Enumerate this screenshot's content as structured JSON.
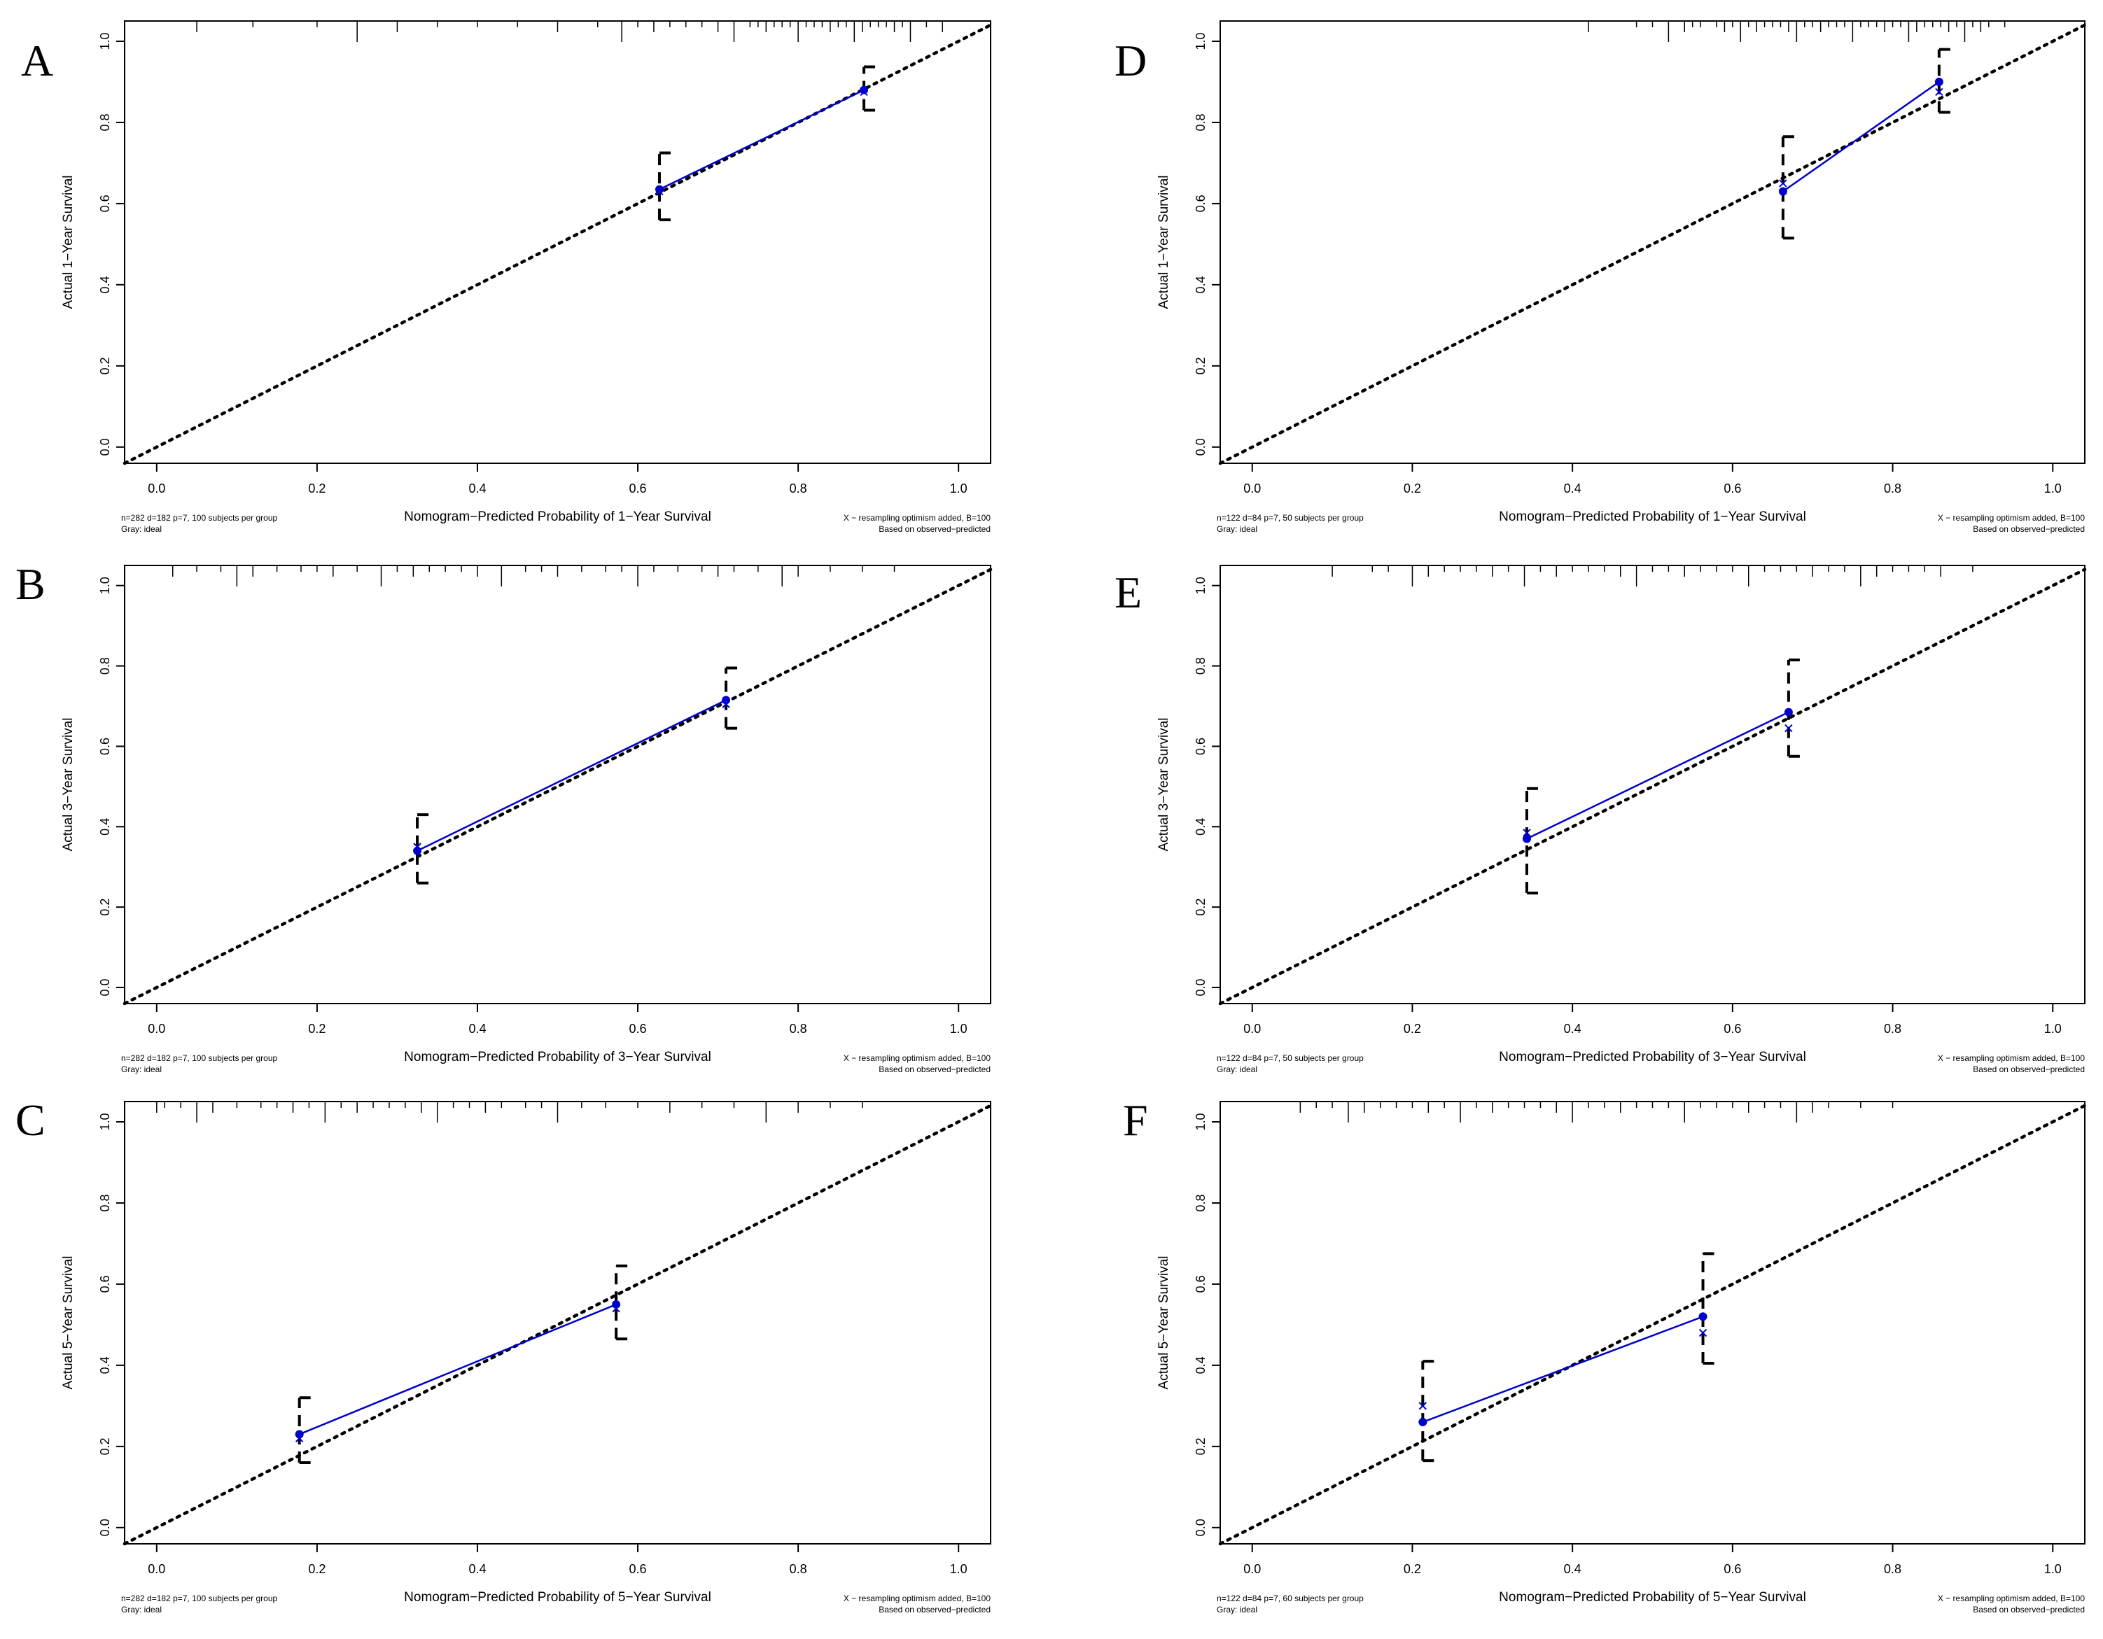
{
  "figure": {
    "background": "#ffffff",
    "fitted_color": "#0000cc",
    "ideal_color": "#000000"
  },
  "chart_data": [
    {
      "letter": "A",
      "type": "line",
      "title": "",
      "xlabel": "Nomogram−Predicted Probability of 1−Year Survival",
      "ylabel": "Actual 1−Year Survival",
      "xlim": [
        -0.04,
        1.04
      ],
      "ylim": [
        -0.04,
        1.05
      ],
      "xticks": [
        "0.0",
        "0.2",
        "0.4",
        "0.6",
        "0.8",
        "1.0"
      ],
      "yticks": [
        "0.0",
        "0.2",
        "0.4",
        "0.6",
        "0.8",
        "1.0"
      ],
      "ideal": [
        [
          -0.04,
          -0.04
        ],
        [
          1.04,
          1.04
        ]
      ],
      "points": [
        {
          "x": 0.627,
          "observed": 0.635,
          "corrected": 0.63,
          "lower": 0.56,
          "upper": 0.725
        },
        {
          "x": 0.882,
          "observed": 0.88,
          "corrected": 0.875,
          "lower": 0.83,
          "upper": 0.937
        }
      ],
      "rug": [
        0.05,
        0.12,
        0.2,
        0.25,
        0.3,
        0.35,
        0.4,
        0.45,
        0.5,
        0.55,
        0.58,
        0.6,
        0.62,
        0.64,
        0.66,
        0.68,
        0.7,
        0.72,
        0.74,
        0.75,
        0.76,
        0.77,
        0.78,
        0.79,
        0.8,
        0.81,
        0.82,
        0.83,
        0.84,
        0.85,
        0.86,
        0.87,
        0.88,
        0.89,
        0.9,
        0.91,
        0.92,
        0.93,
        0.94,
        0.96,
        0.98
      ],
      "footnote_left": [
        "n=282 d=182 p=7, 100 subjects per group",
        "Gray: ideal"
      ],
      "footnote_right": [
        "X − resampling optimism added, B=100",
        "Based on observed−predicted"
      ]
    },
    {
      "letter": "B",
      "type": "line",
      "title": "",
      "xlabel": "Nomogram−Predicted Probability of 3−Year Survival",
      "ylabel": "Actual 3−Year Survival",
      "xlim": [
        -0.04,
        1.04
      ],
      "ylim": [
        -0.04,
        1.05
      ],
      "xticks": [
        "0.0",
        "0.2",
        "0.4",
        "0.6",
        "0.8",
        "1.0"
      ],
      "yticks": [
        "0.0",
        "0.2",
        "0.4",
        "0.6",
        "0.8",
        "1.0"
      ],
      "ideal": [
        [
          -0.04,
          -0.04
        ],
        [
          1.04,
          1.04
        ]
      ],
      "points": [
        {
          "x": 0.325,
          "observed": 0.34,
          "corrected": 0.35,
          "lower": 0.26,
          "upper": 0.43
        },
        {
          "x": 0.71,
          "observed": 0.715,
          "corrected": 0.705,
          "lower": 0.645,
          "upper": 0.795
        }
      ],
      "rug": [
        0.02,
        0.05,
        0.08,
        0.1,
        0.12,
        0.15,
        0.18,
        0.2,
        0.22,
        0.25,
        0.28,
        0.3,
        0.32,
        0.34,
        0.36,
        0.38,
        0.4,
        0.43,
        0.46,
        0.48,
        0.5,
        0.53,
        0.56,
        0.58,
        0.6,
        0.62,
        0.65,
        0.68,
        0.7,
        0.72,
        0.75,
        0.78,
        0.8,
        0.84,
        0.88,
        0.92
      ],
      "footnote_left": [
        "n=282 d=182 p=7, 100 subjects per group",
        "Gray: ideal"
      ],
      "footnote_right": [
        "X − resampling optimism added, B=100",
        "Based on observed−predicted"
      ]
    },
    {
      "letter": "C",
      "type": "line",
      "title": "",
      "xlabel": "Nomogram−Predicted Probability of 5−Year Survival",
      "ylabel": "Actual 5−Year Survival",
      "xlim": [
        -0.04,
        1.04
      ],
      "ylim": [
        -0.04,
        1.05
      ],
      "xticks": [
        "0.0",
        "0.2",
        "0.4",
        "0.6",
        "0.8",
        "1.0"
      ],
      "yticks": [
        "0.0",
        "0.2",
        "0.4",
        "0.6",
        "0.8",
        "1.0"
      ],
      "ideal": [
        [
          -0.04,
          -0.04
        ],
        [
          1.04,
          1.04
        ]
      ],
      "points": [
        {
          "x": 0.178,
          "observed": 0.23,
          "corrected": 0.22,
          "lower": 0.16,
          "upper": 0.32
        },
        {
          "x": 0.573,
          "observed": 0.55,
          "corrected": 0.54,
          "lower": 0.465,
          "upper": 0.645
        }
      ],
      "rug": [
        0.0,
        0.01,
        0.03,
        0.05,
        0.07,
        0.1,
        0.13,
        0.15,
        0.17,
        0.19,
        0.21,
        0.23,
        0.25,
        0.27,
        0.29,
        0.31,
        0.33,
        0.35,
        0.37,
        0.39,
        0.41,
        0.43,
        0.46,
        0.48,
        0.5,
        0.53,
        0.56,
        0.6,
        0.64,
        0.68,
        0.72,
        0.76,
        0.8,
        0.84,
        0.88
      ],
      "footnote_left": [
        "n=282 d=182 p=7, 100 subjects per group",
        "Gray: ideal"
      ],
      "footnote_right": [
        "X − resampling optimism added, B=100",
        "Based on observed−predicted"
      ]
    },
    {
      "letter": "D",
      "type": "line",
      "title": "",
      "xlabel": "Nomogram−Predicted Probability of 1−Year Survival",
      "ylabel": "Actual 1−Year Survival",
      "xlim": [
        -0.04,
        1.04
      ],
      "ylim": [
        -0.04,
        1.05
      ],
      "xticks": [
        "0.0",
        "0.2",
        "0.4",
        "0.6",
        "0.8",
        "1.0"
      ],
      "yticks": [
        "0.0",
        "0.2",
        "0.4",
        "0.6",
        "0.8",
        "1.0"
      ],
      "ideal": [
        [
          -0.04,
          -0.04
        ],
        [
          1.04,
          1.04
        ]
      ],
      "points": [
        {
          "x": 0.663,
          "observed": 0.63,
          "corrected": 0.65,
          "lower": 0.515,
          "upper": 0.765
        },
        {
          "x": 0.858,
          "observed": 0.9,
          "corrected": 0.875,
          "lower": 0.825,
          "upper": 0.98
        }
      ],
      "rug": [
        0.42,
        0.48,
        0.5,
        0.52,
        0.54,
        0.55,
        0.56,
        0.58,
        0.59,
        0.6,
        0.61,
        0.62,
        0.63,
        0.64,
        0.65,
        0.66,
        0.67,
        0.68,
        0.69,
        0.7,
        0.71,
        0.72,
        0.73,
        0.74,
        0.75,
        0.76,
        0.77,
        0.78,
        0.79,
        0.8,
        0.81,
        0.82,
        0.83,
        0.84,
        0.85,
        0.86,
        0.87,
        0.88,
        0.89,
        0.9,
        0.91,
        0.92,
        0.94
      ],
      "footnote_left": [
        "n=122 d=84 p=7, 50 subjects per group",
        "Gray: ideal"
      ],
      "footnote_right": [
        "X − resampling optimism added, B=100",
        "Based on observed−predicted"
      ]
    },
    {
      "letter": "E",
      "type": "line",
      "title": "",
      "xlabel": "Nomogram−Predicted Probability of 3−Year Survival",
      "ylabel": "Actual 3−Year Survival",
      "xlim": [
        -0.04,
        1.04
      ],
      "ylim": [
        -0.04,
        1.05
      ],
      "xticks": [
        "0.0",
        "0.2",
        "0.4",
        "0.6",
        "0.8",
        "1.0"
      ],
      "yticks": [
        "0.0",
        "0.2",
        "0.4",
        "0.6",
        "0.8",
        "1.0"
      ],
      "ideal": [
        [
          -0.04,
          -0.04
        ],
        [
          1.04,
          1.04
        ]
      ],
      "points": [
        {
          "x": 0.343,
          "observed": 0.37,
          "corrected": 0.385,
          "lower": 0.235,
          "upper": 0.495
        },
        {
          "x": 0.67,
          "observed": 0.685,
          "corrected": 0.645,
          "lower": 0.575,
          "upper": 0.815
        }
      ],
      "rug": [
        0.1,
        0.15,
        0.17,
        0.2,
        0.22,
        0.24,
        0.26,
        0.28,
        0.3,
        0.32,
        0.34,
        0.36,
        0.38,
        0.4,
        0.42,
        0.44,
        0.46,
        0.48,
        0.5,
        0.52,
        0.54,
        0.56,
        0.58,
        0.6,
        0.62,
        0.64,
        0.66,
        0.68,
        0.7,
        0.72,
        0.74,
        0.76,
        0.78,
        0.8,
        0.82,
        0.84,
        0.86,
        0.9
      ],
      "footnote_left": [
        "n=122 d=84 p=7, 50 subjects per group",
        "Gray: ideal"
      ],
      "footnote_right": [
        "X − resampling optimism added, B=100",
        "Based on observed−predicted"
      ]
    },
    {
      "letter": "F",
      "type": "line",
      "title": "",
      "xlabel": "Nomogram−Predicted Probability of 5−Year Survival",
      "ylabel": "Actual 5−Year Survival",
      "xlim": [
        -0.04,
        1.04
      ],
      "ylim": [
        -0.04,
        1.05
      ],
      "xticks": [
        "0.0",
        "0.2",
        "0.4",
        "0.6",
        "0.8",
        "1.0"
      ],
      "yticks": [
        "0.0",
        "0.2",
        "0.4",
        "0.6",
        "0.8",
        "1.0"
      ],
      "ideal": [
        [
          -0.04,
          -0.04
        ],
        [
          1.04,
          1.04
        ]
      ],
      "points": [
        {
          "x": 0.213,
          "observed": 0.26,
          "corrected": 0.3,
          "lower": 0.165,
          "upper": 0.41
        },
        {
          "x": 0.563,
          "observed": 0.52,
          "corrected": 0.48,
          "lower": 0.405,
          "upper": 0.675
        }
      ],
      "rug": [
        0.06,
        0.08,
        0.1,
        0.12,
        0.14,
        0.16,
        0.18,
        0.2,
        0.22,
        0.24,
        0.26,
        0.28,
        0.3,
        0.32,
        0.34,
        0.36,
        0.38,
        0.4,
        0.42,
        0.44,
        0.46,
        0.48,
        0.5,
        0.52,
        0.54,
        0.56,
        0.58,
        0.6,
        0.62,
        0.64,
        0.66,
        0.68,
        0.7,
        0.72,
        0.76,
        0.8
      ],
      "footnote_left": [
        "n=122 d=84 p=7, 60 subjects per group",
        "Gray: ideal"
      ],
      "footnote_right": [
        "X − resampling optimism added, B=100",
        "Based on observed−predicted"
      ]
    }
  ]
}
